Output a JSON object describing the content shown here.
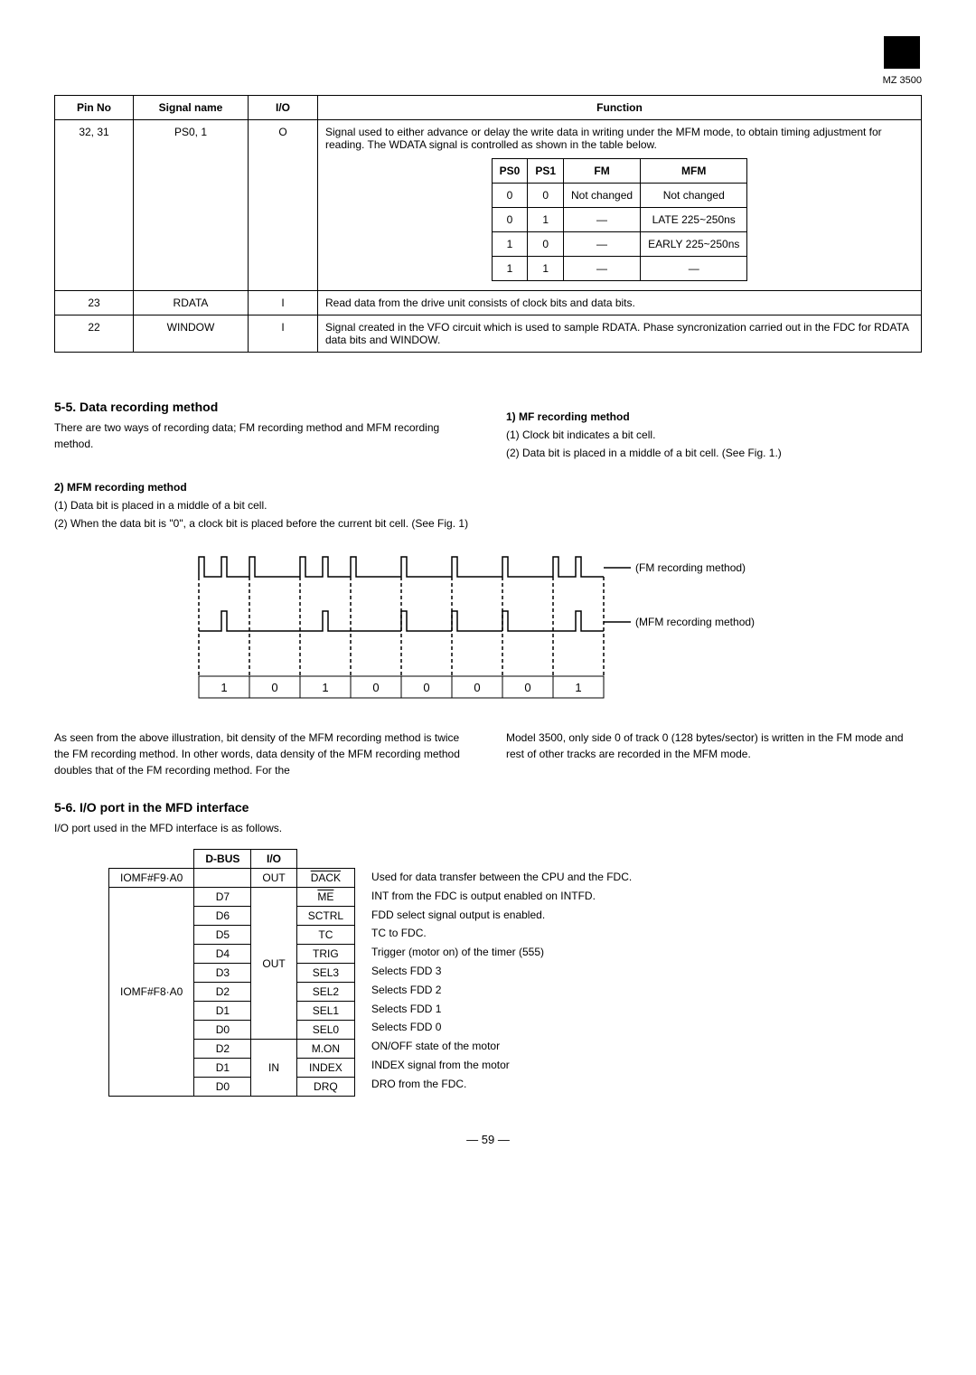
{
  "logo_text": "MZ 3500",
  "pin_table": {
    "headers": [
      "Pin No",
      "Signal name",
      "I/O",
      "Function"
    ],
    "rows": [
      {
        "pin": "32, 31",
        "signal": "PS0, 1",
        "io": "O",
        "func_text": "Signal used to either advance or delay the write data in writing under the MFM mode, to obtain timing adjustment for reading. The WDATA signal is controlled as shown in the table below.",
        "inner": {
          "headers": [
            "PS0",
            "PS1",
            "FM",
            "MFM"
          ],
          "rows": [
            [
              "0",
              "0",
              "Not changed",
              "Not changed"
            ],
            [
              "0",
              "1",
              "—",
              "LATE 225~250ns"
            ],
            [
              "1",
              "0",
              "—",
              "EARLY 225~250ns"
            ],
            [
              "1",
              "1",
              "—",
              "—"
            ]
          ]
        }
      },
      {
        "pin": "23",
        "signal": "RDATA",
        "io": "I",
        "func_text": "Read data from the drive unit consists of clock bits and data bits."
      },
      {
        "pin": "22",
        "signal": "WINDOW",
        "io": "I",
        "func_text": "Signal created in the VFO circuit which is used to sample RDATA. Phase syncronization carried out in the FDC for RDATA data bits and WINDOW."
      }
    ]
  },
  "sec55": {
    "title": "5-5.  Data recording method",
    "left_p1": "There are two ways of recording data; FM recording method and MFM recording method.",
    "right_h": "1) MF recording method",
    "right_1": "(1)  Clock bit indicates a bit cell.",
    "right_2": "(2)  Data bit is placed in a middle of a bit cell. (See Fig. 1.)",
    "mfm_h": "2) MFM recording method",
    "mfm_1": "(1)  Data bit is placed in a middle of a bit cell.",
    "mfm_2": "(2)  When the data bit is \"0\", a clock bit is placed before the current bit cell. (See Fig. 1)"
  },
  "waveform": {
    "label_fm": "(FM recording method)",
    "label_mfm": "(MFM recording method)",
    "bitcells": [
      "1",
      "0",
      "1",
      "0",
      "0",
      "0",
      "0",
      "1"
    ]
  },
  "para_after": {
    "left": "As seen from the above illustration, bit density of the MFM recording method is twice the FM recording method. In other words, data density of the MFM recording method doubles that of the FM recording method. For the",
    "right": "Model 3500, only side 0 of track 0 (128 bytes/sector) is written in the FM mode and rest of other tracks are recorded in the MFM mode."
  },
  "sec56": {
    "title": "5-6.  I/O port in the MFD interface",
    "intro": "I/O port used in the MFD interface is as follows.",
    "table": {
      "head": [
        "",
        "D-BUS",
        "I/O",
        ""
      ],
      "groups": [
        {
          "addr": "IOMF#F9·A0",
          "addr_over": false,
          "rows": [
            {
              "dbus": "",
              "io": "OUT",
              "sig": "DACK",
              "sig_over": true
            }
          ]
        },
        {
          "addr": "IOMF#F8·A0",
          "addr_over": true,
          "rows": [
            {
              "dbus": "D7",
              "io": "OUT",
              "sig": "ME",
              "sig_over": true
            },
            {
              "dbus": "D6",
              "io": "",
              "sig": "SCTRL"
            },
            {
              "dbus": "D5",
              "io": "",
              "sig": "TC"
            },
            {
              "dbus": "D4",
              "io": "",
              "sig": "TRIG"
            },
            {
              "dbus": "D3",
              "io": "",
              "sig": "SEL3"
            },
            {
              "dbus": "D2",
              "io": "",
              "sig": "SEL2"
            },
            {
              "dbus": "D1",
              "io": "",
              "sig": "SEL1"
            },
            {
              "dbus": "D0",
              "io": "",
              "sig": "SEL0"
            },
            {
              "dbus": "D2",
              "io": "IN",
              "sig": "M.ON"
            },
            {
              "dbus": "D1",
              "io": "",
              "sig": "INDEX"
            },
            {
              "dbus": "D0",
              "io": "",
              "sig": "DRQ"
            }
          ]
        }
      ]
    },
    "desc": [
      "Used for data transfer between the CPU and the FDC.",
      "INT from the FDC is output enabled on INTFD.",
      "FDD select signal output is enabled.",
      "TC to FDC.",
      "Trigger (motor on) of the timer (555)",
      "Selects FDD 3",
      "Selects FDD 2",
      "Selects FDD 1",
      "Selects FDD 0",
      "ON/OFF state of the motor",
      "INDEX signal from the motor",
      "DRO from the FDC."
    ]
  },
  "page_number": "— 59 —"
}
